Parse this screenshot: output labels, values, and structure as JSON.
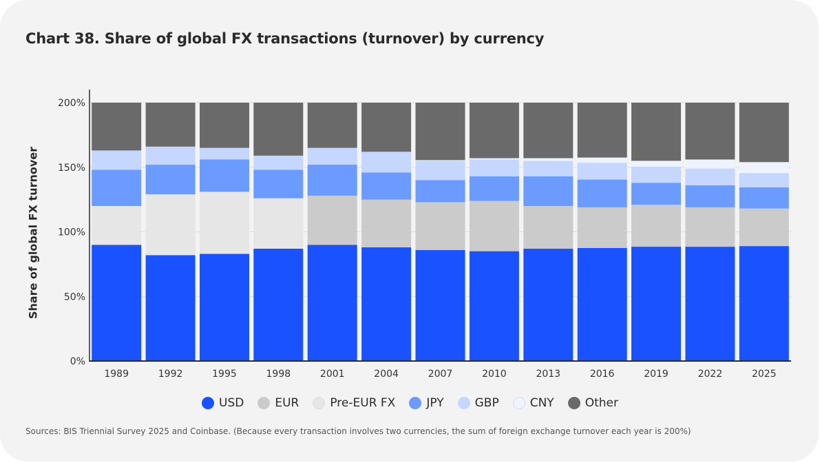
{
  "chart_data": {
    "type": "bar",
    "stacked": true,
    "title": "Chart 38. Share of global FX transactions (turnover) by currency",
    "ylabel": "Share of global FX turnover",
    "xlabel": "",
    "ylim": [
      0,
      200
    ],
    "yticks": [
      "0%",
      "50%",
      "100%",
      "150%",
      "200%"
    ],
    "ytick_values": [
      0,
      50,
      100,
      150,
      200
    ],
    "categories": [
      "1989",
      "1992",
      "1995",
      "1998",
      "2001",
      "2004",
      "2007",
      "2010",
      "2013",
      "2016",
      "2019",
      "2022",
      "2025"
    ],
    "series": [
      {
        "name": "USD",
        "color": "#1a52ff",
        "values": [
          90,
          82,
          83,
          87,
          90,
          88,
          86,
          85,
          87,
          87.5,
          88.5,
          88.5,
          89
        ]
      },
      {
        "name": "EUR",
        "color": "#cbcbcb",
        "values": [
          0,
          0,
          0,
          0,
          38,
          37,
          37,
          39,
          33,
          31.5,
          32.5,
          30.5,
          29
        ]
      },
      {
        "name": "Pre-EUR FX",
        "color": "#e6e6e6",
        "values": [
          30,
          47,
          48,
          39,
          0,
          0,
          0,
          0,
          0,
          0,
          0,
          0,
          0
        ]
      },
      {
        "name": "JPY",
        "color": "#6b9bff",
        "values": [
          28,
          23,
          25,
          22,
          24,
          21,
          17,
          19,
          23,
          21.5,
          17,
          17,
          16.5
        ]
      },
      {
        "name": "GBP",
        "color": "#c5d6ff",
        "values": [
          15,
          14,
          9,
          11,
          13,
          16,
          15,
          13,
          12,
          13,
          12.5,
          13,
          11
        ]
      },
      {
        "name": "CNY",
        "color": "#eef3ff",
        "values": [
          0,
          0,
          0,
          0,
          0,
          0,
          0.5,
          1,
          2,
          4,
          4.5,
          7,
          8.5
        ]
      },
      {
        "name": "Other",
        "color": "#6a6a6a",
        "values": [
          37,
          34,
          35,
          41,
          35,
          38,
          44.5,
          43,
          43,
          42.5,
          45,
          44,
          46
        ]
      }
    ]
  },
  "source": "Sources: BIS Triennial Survey 2025 and Coinbase.  (Because every transaction involves two currencies, the sum of foreign exchange turnover each year is 200%)"
}
